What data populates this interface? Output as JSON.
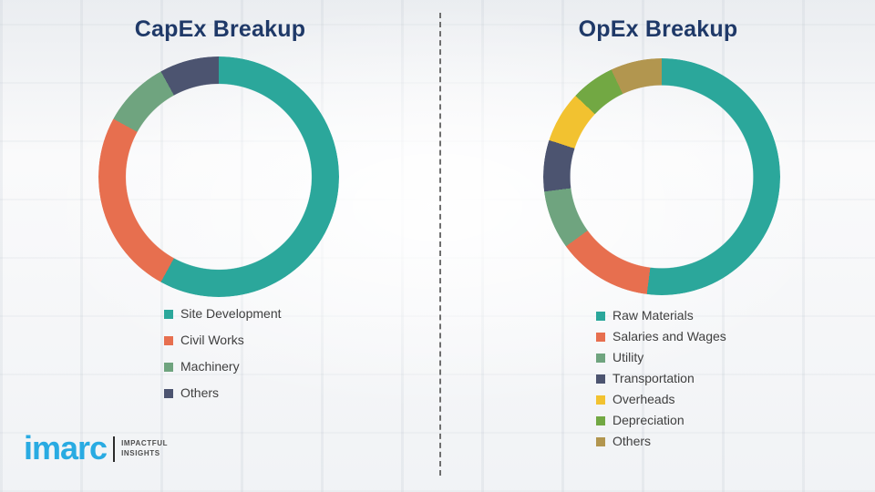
{
  "chart_data": [
    {
      "type": "pie",
      "subtype": "donut",
      "title": "CapEx Breakup",
      "direction": "clockwise",
      "start_angle_deg": 0,
      "legend_position": "bottom",
      "segments": [
        {
          "label": "Site Development",
          "value": 58,
          "color": "#2BA79B"
        },
        {
          "label": "Civil Works",
          "value": 25,
          "color": "#E76F4F"
        },
        {
          "label": "Machinery",
          "value": 9,
          "color": "#6FA47F"
        },
        {
          "label": "Others",
          "value": 8,
          "color": "#4C5470"
        }
      ]
    },
    {
      "type": "pie",
      "subtype": "donut",
      "title": "OpEx Breakup",
      "direction": "clockwise",
      "start_angle_deg": 0,
      "legend_position": "bottom",
      "segments": [
        {
          "label": "Raw Materials",
          "value": 52,
          "color": "#2BA79B"
        },
        {
          "label": "Salaries and Wages",
          "value": 13,
          "color": "#E76F4F"
        },
        {
          "label": "Utility",
          "value": 8,
          "color": "#6FA47F"
        },
        {
          "label": "Transportation",
          "value": 7,
          "color": "#4C5470"
        },
        {
          "label": "Overheads",
          "value": 7,
          "color": "#F2C230"
        },
        {
          "label": "Depreciation",
          "value": 6,
          "color": "#72A843"
        },
        {
          "label": "Others",
          "value": 7,
          "color": "#B2964F"
        }
      ]
    }
  ],
  "logo": {
    "brand": "imarc",
    "tagline": [
      "IMPACTFUL",
      "INSIGHTS"
    ]
  }
}
